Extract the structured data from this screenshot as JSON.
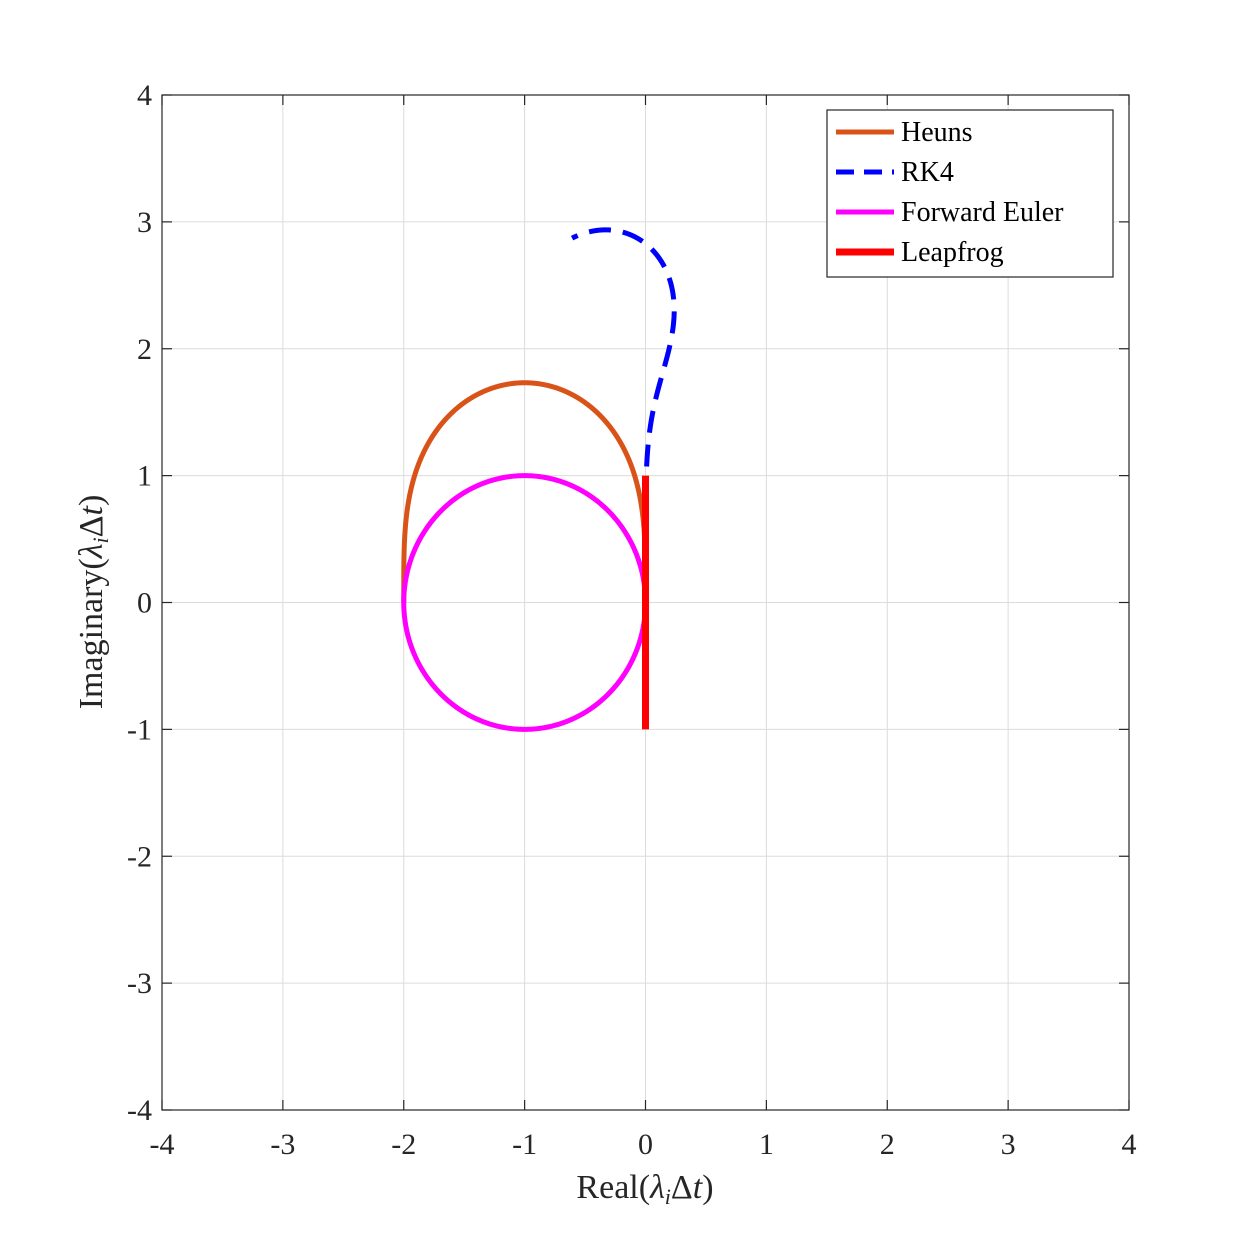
{
  "chart_data": {
    "type": "line",
    "title": "",
    "xlabel_parts": {
      "pre": "Real(",
      "sym": "λ",
      "sub": "i",
      "mid": "Δ",
      "var": "t",
      "post": ")"
    },
    "ylabel_parts": {
      "pre": "Imaginary(",
      "sym": "λ",
      "sub": "i",
      "mid": "Δ",
      "var": "t",
      "post": ")"
    },
    "xlim": [
      -4,
      4
    ],
    "ylim": [
      -4,
      4
    ],
    "xticks": [
      -4,
      -3,
      -2,
      -1,
      0,
      1,
      2,
      3,
      4
    ],
    "yticks": [
      -4,
      -3,
      -2,
      -1,
      0,
      1,
      2,
      3,
      4
    ],
    "xtick_labels": [
      "-4",
      "-3",
      "-2",
      "-1",
      "0",
      "1",
      "2",
      "3",
      "4"
    ],
    "ytick_labels": [
      "-4",
      "-3",
      "-2",
      "-1",
      "0",
      "1",
      "2",
      "3",
      "4"
    ],
    "grid": true,
    "legend_position": "top-right",
    "series": [
      {
        "name": "Heuns",
        "color": "#D95319",
        "style": "solid",
        "boundary": "|1 + z + z^2/2| = 1"
      },
      {
        "name": "RK4",
        "color": "#0000FF",
        "style": "dashed",
        "boundary": "|1 + z + z^2/2 + z^3/6 + z^4/24| = 1"
      },
      {
        "name": "Forward Euler",
        "color": "#FF00FF",
        "style": "solid",
        "boundary": "|1 + z| = 1"
      },
      {
        "name": "Leapfrog",
        "color": "#FF0000",
        "style": "solid",
        "segment": {
          "x": [
            0,
            0
          ],
          "y": [
            -1,
            1
          ]
        }
      }
    ]
  }
}
